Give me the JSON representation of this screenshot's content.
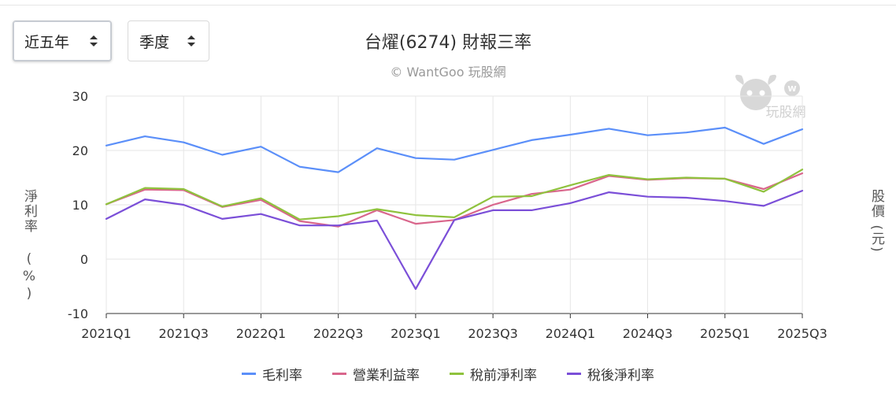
{
  "controls": {
    "period": {
      "label": "近五年"
    },
    "frequency": {
      "label": "季度"
    }
  },
  "header": {
    "title": "台燿(6274) 財報三率",
    "credit": "© WantGoo 玩股網"
  },
  "watermark": {
    "text": "玩股網"
  },
  "axes": {
    "left_label": "淨利率 (%)",
    "right_label": "股價 (元)"
  },
  "chart_data": {
    "type": "line",
    "categories": [
      "2021Q1",
      "2021Q2",
      "2021Q3",
      "2021Q4",
      "2022Q1",
      "2022Q2",
      "2022Q3",
      "2022Q4",
      "2023Q1",
      "2023Q2",
      "2023Q3",
      "2023Q4",
      "2024Q1",
      "2024Q2",
      "2024Q3",
      "2024Q4",
      "2025Q1",
      "2025Q2",
      "2025Q3"
    ],
    "tick_labels": [
      "2021Q1",
      "2021Q3",
      "2022Q1",
      "2022Q3",
      "2023Q1",
      "2023Q3",
      "2024Q1",
      "2024Q3",
      "2025Q1",
      "2025Q3"
    ],
    "ylim": [
      -10,
      30
    ],
    "yticks": [
      -10,
      0,
      10,
      20,
      30
    ],
    "grid": true,
    "legend_position": "bottom",
    "series": [
      {
        "name": "毛利率",
        "color": "#5b8ff9",
        "values": [
          20.9,
          22.6,
          21.5,
          19.2,
          20.7,
          17.0,
          16.0,
          20.4,
          18.6,
          18.3,
          20.1,
          21.9,
          22.9,
          24.0,
          22.8,
          23.3,
          24.2,
          21.2,
          23.9
        ]
      },
      {
        "name": "營業利益率",
        "color": "#d9668c",
        "values": [
          10.1,
          12.8,
          12.7,
          9.6,
          10.9,
          7.0,
          6.0,
          9.0,
          6.5,
          7.2,
          10.0,
          12.0,
          12.8,
          15.3,
          14.6,
          14.9,
          14.8,
          12.9,
          15.8
        ]
      },
      {
        "name": "稅前淨利率",
        "color": "#8fc23d",
        "values": [
          10.1,
          13.1,
          12.9,
          9.7,
          11.2,
          7.3,
          7.9,
          9.2,
          8.1,
          7.7,
          11.5,
          11.6,
          13.6,
          15.5,
          14.7,
          15.0,
          14.8,
          12.4,
          16.5
        ]
      },
      {
        "name": "稅後淨利率",
        "color": "#7b4fd8",
        "values": [
          7.4,
          11.0,
          10.0,
          7.4,
          8.3,
          6.2,
          6.2,
          7.1,
          -5.5,
          7.2,
          9.0,
          9.0,
          10.3,
          12.3,
          11.5,
          11.3,
          10.7,
          9.8,
          12.6
        ]
      }
    ]
  }
}
